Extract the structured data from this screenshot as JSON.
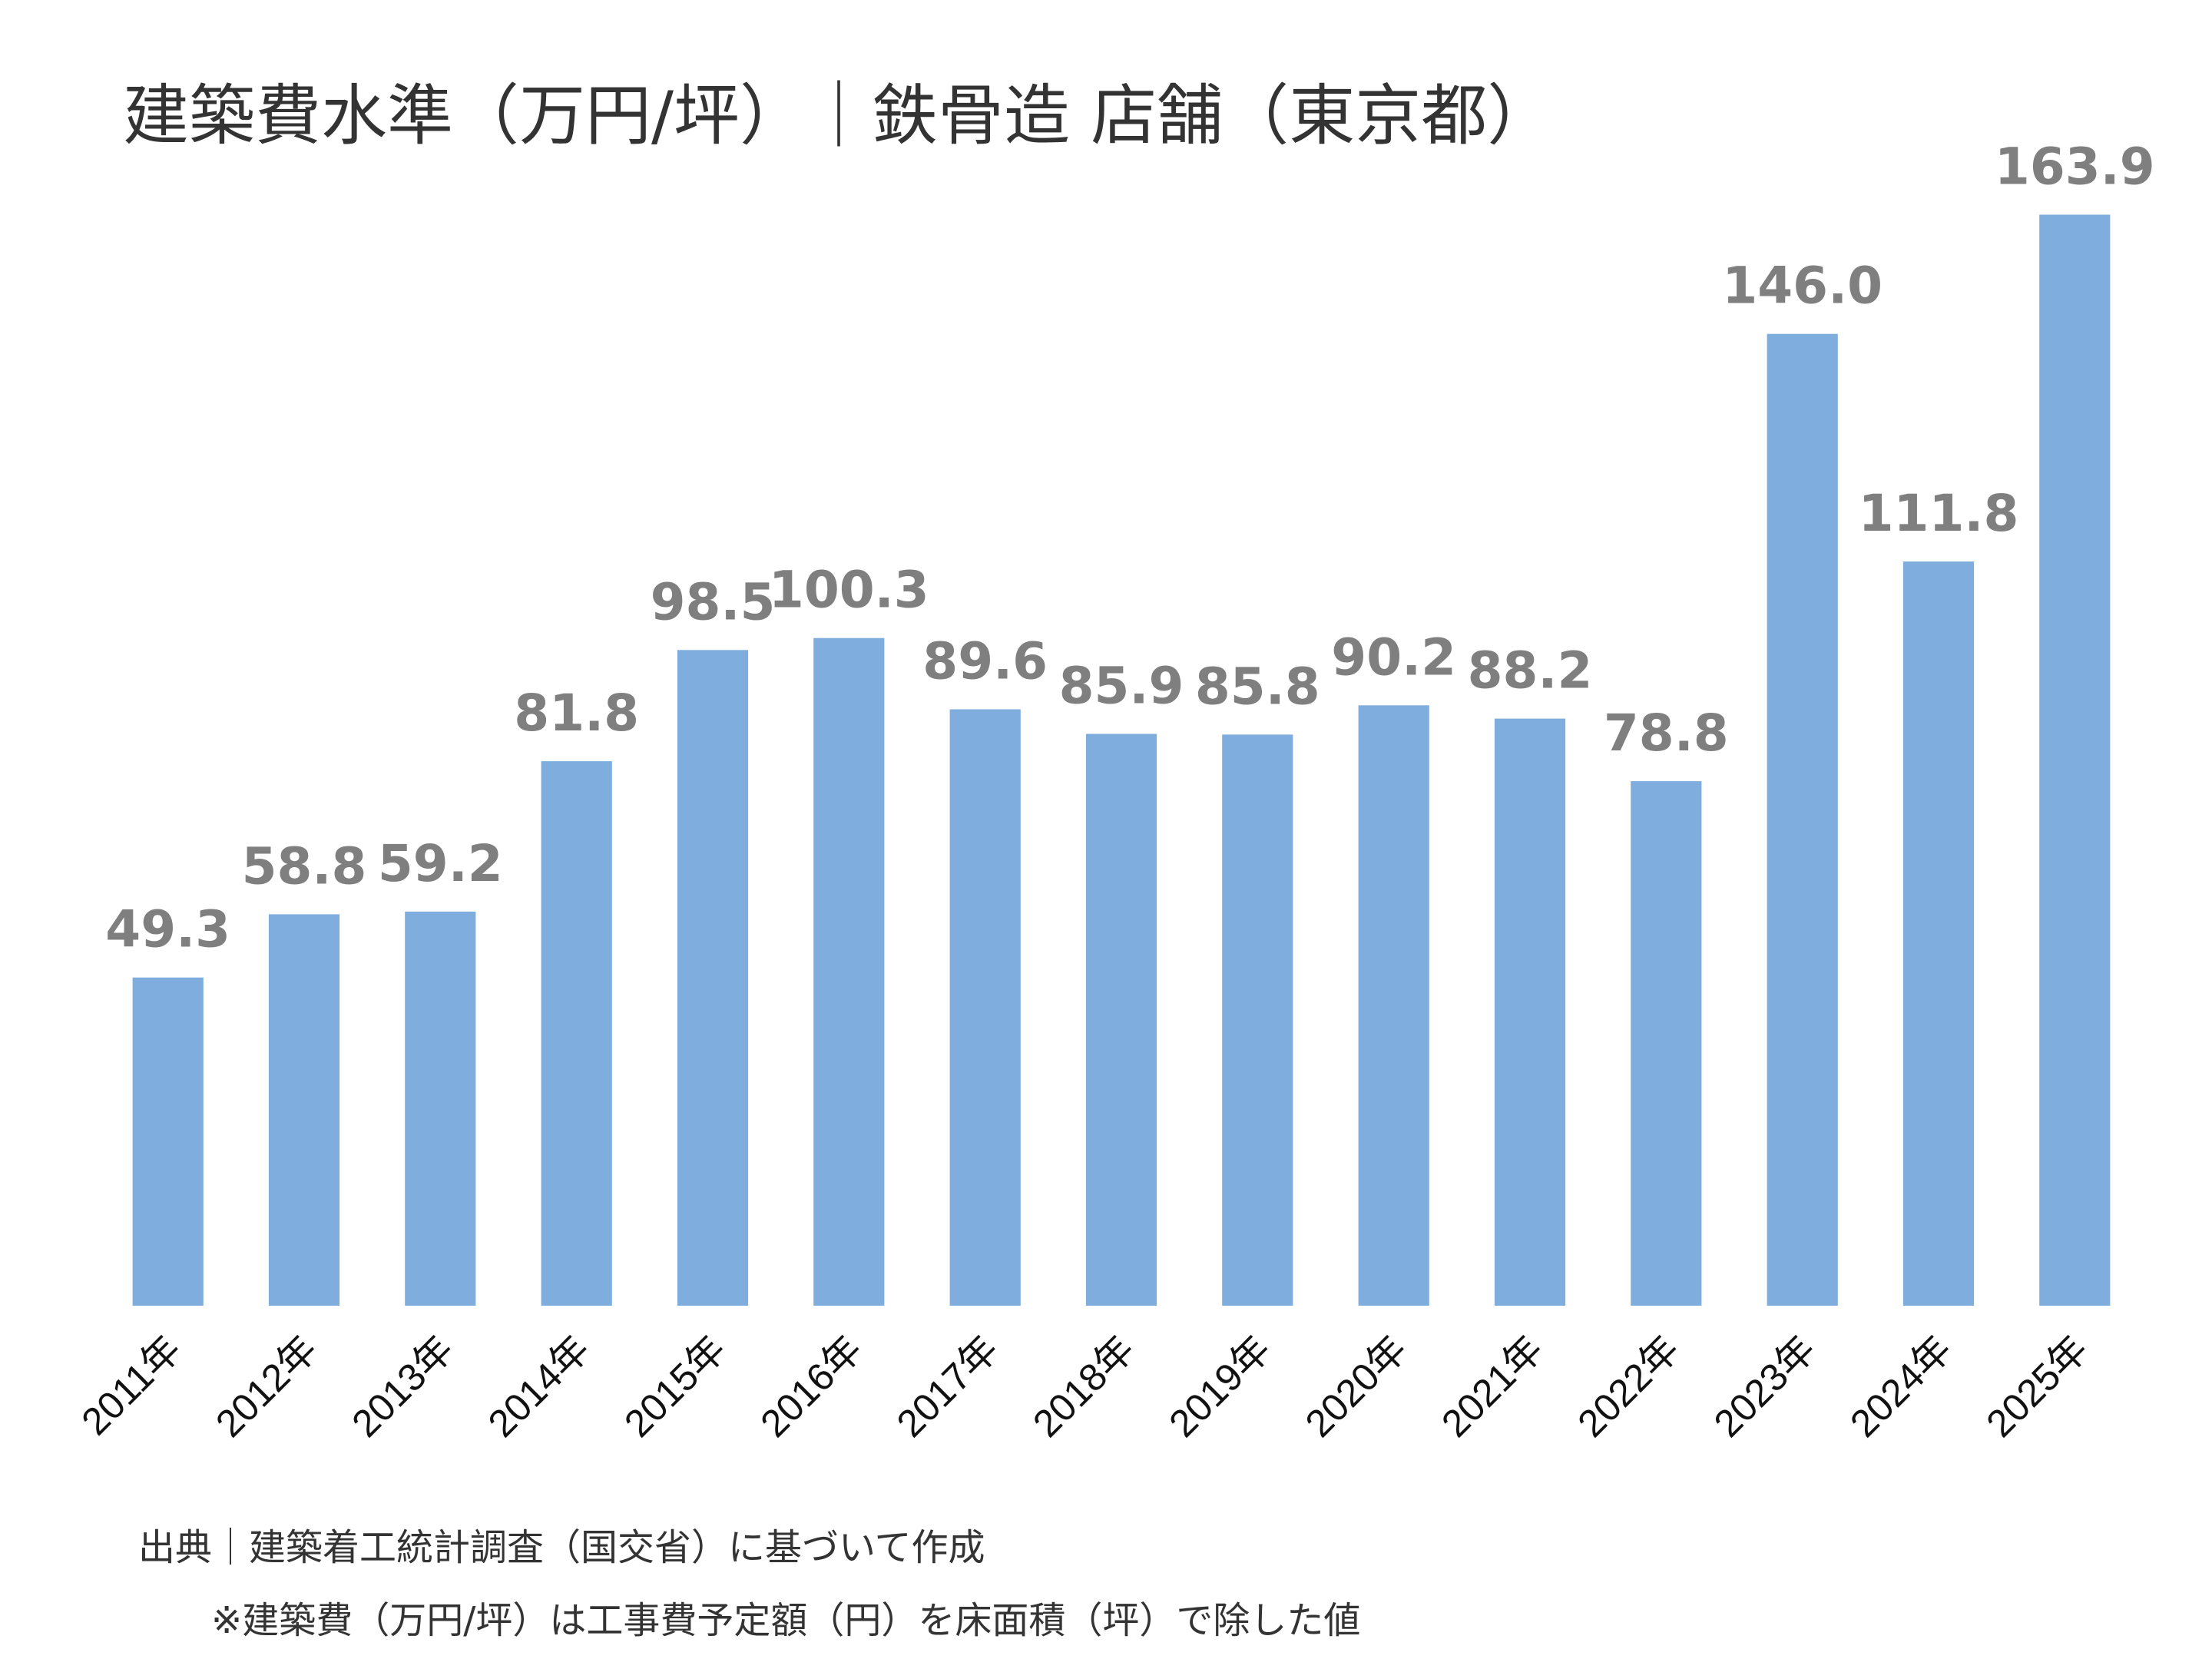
{
  "title": "建築費水準（万円/坪）｜鉄骨造 店舗（東京都）",
  "source": "出典｜建築着工統計調査（国交省）に基づいて作成",
  "note": "※建築費（万円/坪）は工事費予定額（円）を床面積（坪）で除した値",
  "colors": {
    "bar": "#7eadde",
    "value_label": "#7f7f7f",
    "text": "#333333"
  },
  "chart_data": {
    "type": "bar",
    "title": "建築費水準（万円/坪）｜鉄骨造 店舗（東京都）",
    "xlabel": "",
    "ylabel": "",
    "ylim": [
      0,
      180
    ],
    "grid": false,
    "categories": [
      "2011年",
      "2012年",
      "2013年",
      "2014年",
      "2015年",
      "2016年",
      "2017年",
      "2018年",
      "2019年",
      "2020年",
      "2021年",
      "2022年",
      "2023年",
      "2024年",
      "2025年"
    ],
    "values": [
      49.3,
      58.8,
      59.2,
      81.8,
      98.5,
      100.3,
      89.6,
      85.9,
      85.8,
      90.2,
      88.2,
      78.8,
      146.0,
      111.8,
      163.9
    ],
    "value_labels": [
      "49.3",
      "58.8",
      "59.2",
      "81.8",
      "98.5",
      "100.3",
      "89.6",
      "85.9",
      "85.8",
      "90.2",
      "88.2",
      "78.8",
      "146.0",
      "111.8",
      "163.9"
    ]
  }
}
